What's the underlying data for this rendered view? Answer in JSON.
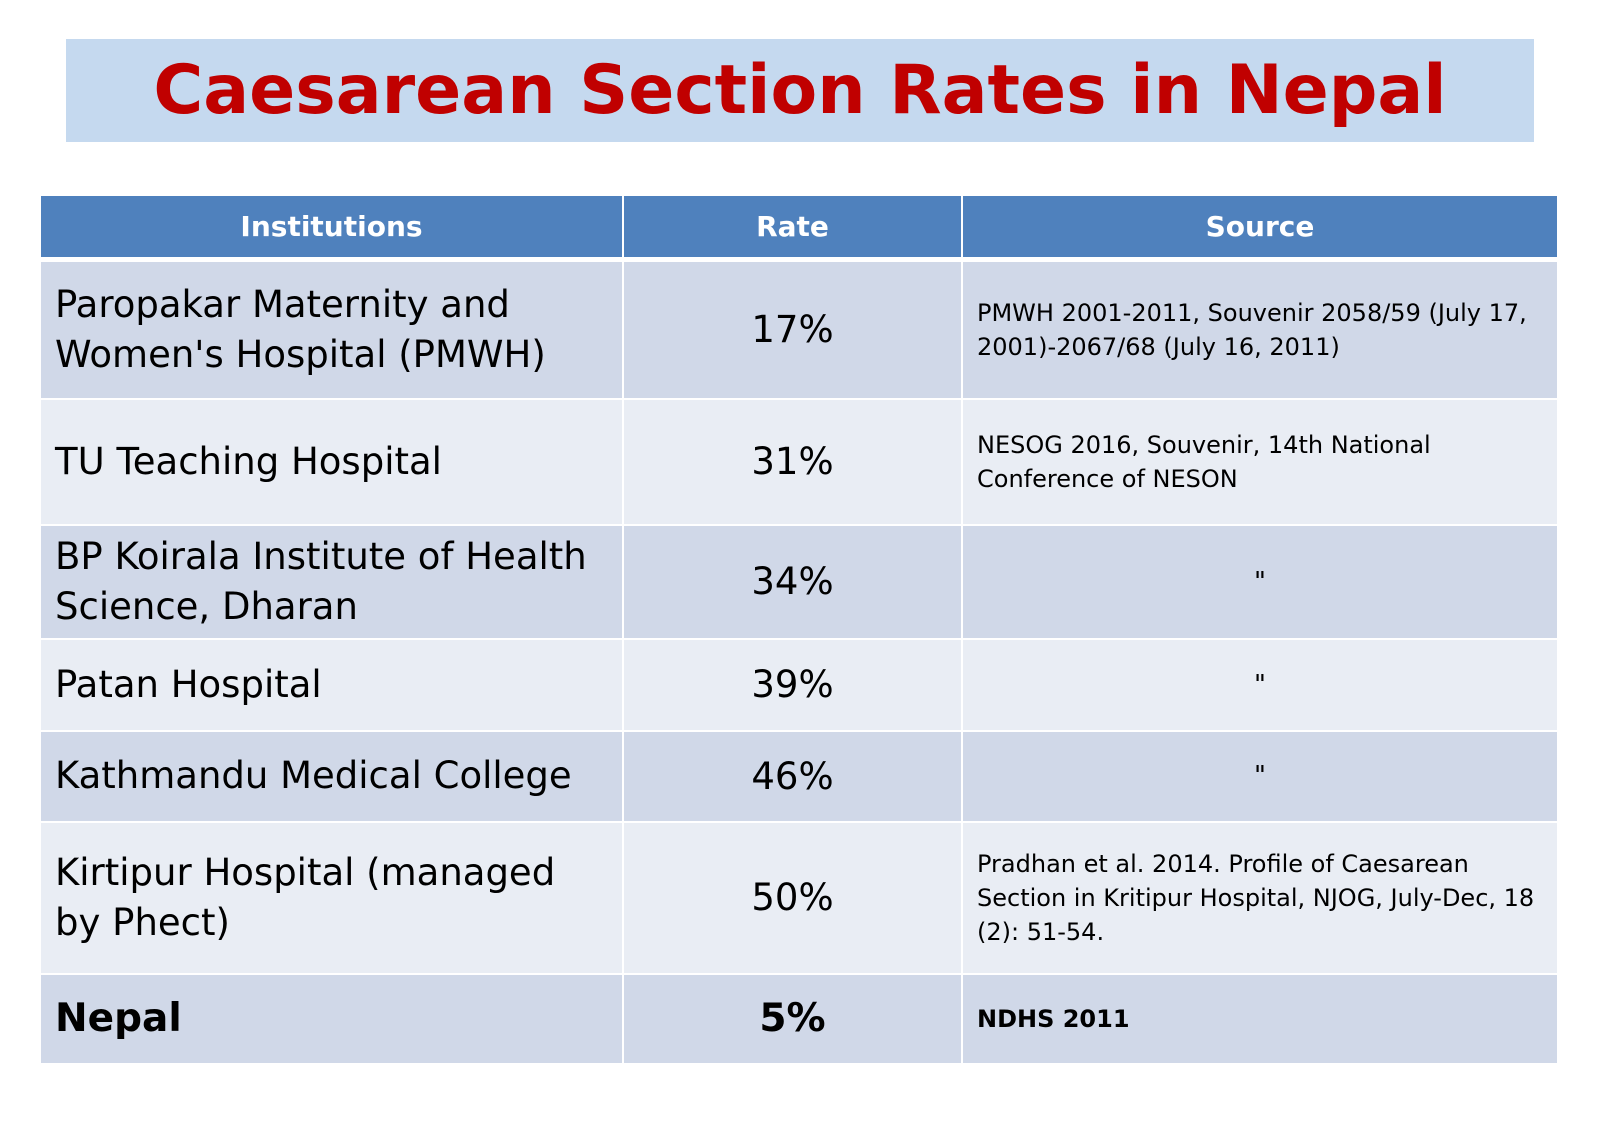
{
  "title": "Caesarean Section Rates in Nepal",
  "table": {
    "headers": [
      "Institutions",
      "Rate",
      "Source"
    ],
    "rows": [
      {
        "institution": "Paropakar Maternity and Women's Hospital (PMWH)",
        "rate": "17%",
        "source": "PMWH 2001-2011, Souvenir 2058/59 (July 17, 2001)-2067/68 (July 16, 2011)"
      },
      {
        "institution": "TU Teaching Hospital",
        "rate": "31%",
        "source": "NESOG 2016, Souvenir, 14th National Conference of NESON"
      },
      {
        "institution": "BP Koirala Institute of Health Science, Dharan",
        "rate": "34%",
        "source": "\""
      },
      {
        "institution": "Patan Hospital",
        "rate": "39%",
        "source": "\""
      },
      {
        "institution": "Kathmandu Medical College",
        "rate": "46%",
        "source": "\""
      },
      {
        "institution": "Kirtipur Hospital (managed by Phect)",
        "rate": "50%",
        "source": "Pradhan et al. 2014. Profile of Caesarean Section in Kritipur Hospital, NJOG, July-Dec, 18 (2): 51-54."
      },
      {
        "institution": "Nepal",
        "rate": "5%",
        "source": "NDHS 2011"
      }
    ]
  },
  "colors": {
    "title_text": "#c00000",
    "title_background": "#c5d9ef",
    "header_background": "#4f81bd",
    "row_dark": "#d0d8e8",
    "row_light": "#e9edf4"
  }
}
